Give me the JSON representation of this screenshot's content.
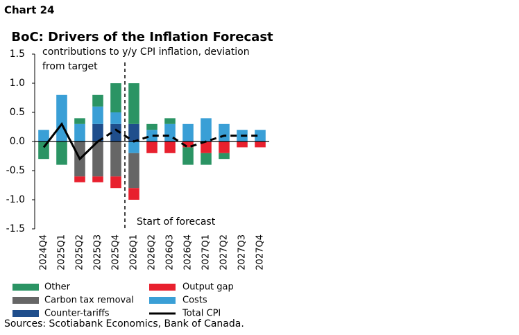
{
  "header": "Chart 24",
  "chart_data": {
    "type": "bar",
    "stacked": true,
    "title": "BoC: Drivers of the Inflation Forecast",
    "subtitle_lines": [
      "contributions to y/y CPI inflation, deviation",
      "from target"
    ],
    "annotation": "Start of forecast",
    "forecast_divider_after_index": 4,
    "categories": [
      "2024Q4",
      "2025Q1",
      "2025Q2",
      "2025Q3",
      "2025Q4",
      "2026Q1",
      "2026Q2",
      "2026Q3",
      "2026Q4",
      "2027Q1",
      "2027Q2",
      "2027Q3",
      "2027Q4"
    ],
    "ylim": [
      -1.5,
      1.5
    ],
    "yticks": [
      {
        "value": -1.5,
        "label": "-1.5"
      },
      {
        "value": -1,
        "label": "-1.0"
      },
      {
        "value": -0.5,
        "label": "-0.5"
      },
      {
        "value": 0,
        "label": "0.0"
      },
      {
        "value": 0.5,
        "label": "0.5"
      },
      {
        "value": 1,
        "label": "1.0"
      },
      {
        "value": 1.5,
        "label": "1.5"
      }
    ],
    "series": [
      {
        "name": "Counter-tariffs",
        "color": "#1f4e8c",
        "values": [
          0,
          0,
          0,
          0.3,
          0.3,
          0.3,
          0,
          0,
          0,
          0,
          0,
          0,
          0
        ]
      },
      {
        "name": "Costs",
        "color": "#3a9fd6",
        "values": [
          0.2,
          0.8,
          0.3,
          0.3,
          0.2,
          -0.2,
          0.2,
          0.3,
          0.3,
          0.4,
          0.3,
          0.2,
          0.2
        ]
      },
      {
        "name": "Carbon tax removal",
        "color": "#666666",
        "values": [
          0,
          0,
          -0.6,
          -0.6,
          -0.6,
          -0.6,
          0,
          0,
          0,
          0,
          0,
          0,
          0
        ]
      },
      {
        "name": "Output gap",
        "color": "#e8202e",
        "values": [
          0,
          0,
          -0.1,
          -0.1,
          -0.2,
          -0.2,
          -0.2,
          -0.2,
          -0.1,
          -0.2,
          -0.2,
          -0.1,
          -0.1
        ]
      },
      {
        "name": "Other",
        "color": "#2b9464",
        "values": [
          -0.3,
          -0.4,
          0.1,
          0.2,
          0.5,
          0.7,
          0.1,
          0.1,
          -0.3,
          -0.2,
          -0.1,
          0,
          0
        ]
      },
      {
        "name": "Total CPI",
        "type": "line",
        "color": "#000000",
        "dashed_from_index": 3,
        "values": [
          -0.1,
          0.3,
          -0.3,
          0,
          0.2,
          0,
          0.1,
          0.1,
          -0.1,
          0,
          0.1,
          0.1,
          0.1
        ]
      }
    ],
    "source": "Sources: Scotiabank Economics, Bank of Canada."
  }
}
